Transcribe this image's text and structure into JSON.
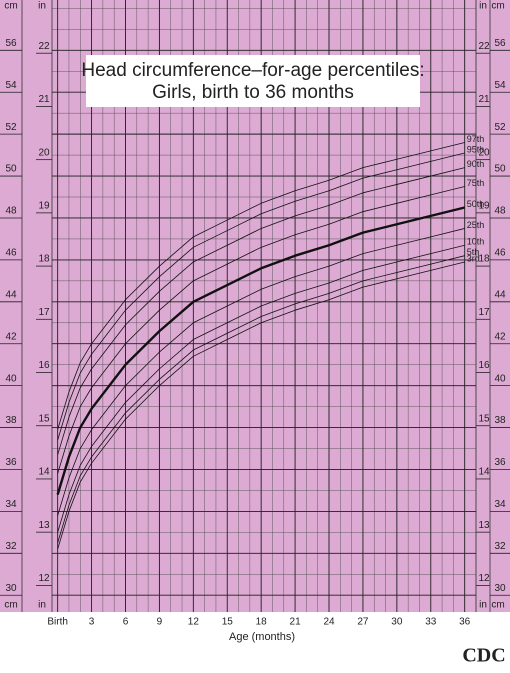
{
  "chart_data": {
    "type": "line",
    "title": "Head circumference–for-age percentiles:",
    "subtitle": "Girls, birth to 36 months",
    "x_label": "Age (months)",
    "y_label": "cm",
    "y2_label": "in",
    "logo": "CDC",
    "background": "#dcaad3",
    "grid": true,
    "x": [
      0,
      1,
      2,
      3,
      6,
      9,
      12,
      15,
      18,
      21,
      24,
      27,
      30,
      33,
      36
    ],
    "xlim": [
      -0.5,
      37
    ],
    "xticks": [
      {
        "value": 0,
        "label": "Birth"
      },
      3,
      6,
      9,
      12,
      15,
      18,
      21,
      24,
      27,
      30,
      33,
      36
    ],
    "ylim": [
      29.2,
      58.4
    ],
    "yticks": [
      30,
      32,
      34,
      36,
      38,
      40,
      42,
      44,
      46,
      48,
      50,
      52,
      54,
      56
    ],
    "y2lim": [
      11.5,
      23
    ],
    "y2ticks": [
      12,
      13,
      14,
      15,
      16,
      17,
      18,
      19,
      20,
      21,
      22
    ],
    "series": [
      {
        "name": "97th",
        "color": "#111",
        "width": 0.8,
        "values": [
          37.9,
          39.7,
          41.1,
          42.0,
          44.1,
          45.7,
          47.1,
          47.9,
          48.7,
          49.3,
          49.8,
          50.4,
          50.8,
          51.2,
          51.6
        ]
      },
      {
        "name": "95th",
        "color": "#111",
        "width": 0.8,
        "values": [
          37.4,
          39.2,
          40.6,
          41.5,
          43.6,
          45.2,
          46.6,
          47.4,
          48.2,
          48.8,
          49.3,
          49.9,
          50.3,
          50.7,
          51.1
        ]
      },
      {
        "name": "90th",
        "color": "#111",
        "width": 0.8,
        "values": [
          36.7,
          38.5,
          39.9,
          40.8,
          42.9,
          44.5,
          45.9,
          46.7,
          47.5,
          48.1,
          48.6,
          49.2,
          49.6,
          50.0,
          50.4
        ]
      },
      {
        "name": "75th",
        "color": "#111",
        "width": 0.8,
        "values": [
          35.8,
          37.6,
          39.0,
          39.9,
          42.0,
          43.6,
          45.0,
          45.8,
          46.6,
          47.2,
          47.7,
          48.3,
          48.7,
          49.1,
          49.5
        ]
      },
      {
        "name": "50th",
        "color": "#111",
        "width": 2.4,
        "values": [
          34.8,
          36.6,
          38.0,
          38.9,
          41.0,
          42.6,
          44.0,
          44.8,
          45.6,
          46.2,
          46.7,
          47.3,
          47.7,
          48.1,
          48.5
        ]
      },
      {
        "name": "25th",
        "color": "#111",
        "width": 0.8,
        "values": [
          33.8,
          35.6,
          37.0,
          37.9,
          40.0,
          41.6,
          43.0,
          43.8,
          44.6,
          45.2,
          45.7,
          46.3,
          46.7,
          47.1,
          47.5
        ]
      },
      {
        "name": "10th",
        "color": "#111",
        "width": 0.8,
        "values": [
          33.0,
          34.8,
          36.2,
          37.1,
          39.2,
          40.8,
          42.2,
          43.0,
          43.8,
          44.4,
          44.9,
          45.5,
          45.9,
          46.3,
          46.7
        ]
      },
      {
        "name": "5th",
        "color": "#111",
        "width": 0.8,
        "values": [
          32.5,
          34.3,
          35.7,
          36.6,
          38.7,
          40.3,
          41.7,
          42.5,
          43.3,
          43.9,
          44.4,
          45.0,
          45.4,
          45.8,
          46.2
        ]
      },
      {
        "name": "3rd",
        "color": "#111",
        "width": 0.8,
        "values": [
          32.2,
          34.0,
          35.4,
          36.3,
          38.4,
          40.0,
          41.4,
          42.2,
          43.0,
          43.6,
          44.1,
          44.7,
          45.1,
          45.5,
          45.9
        ]
      }
    ]
  }
}
